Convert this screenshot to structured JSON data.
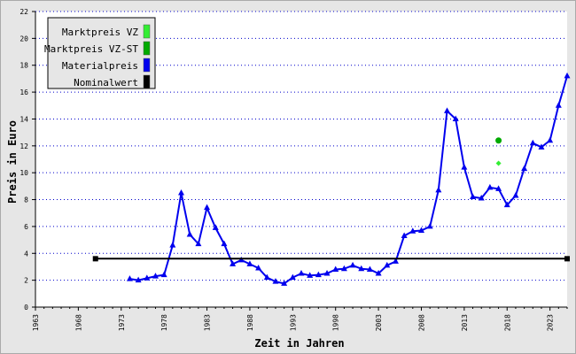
{
  "chart_data": {
    "type": "line",
    "xlabel": "Zeit in Jahren",
    "ylabel": "Preis in Euro",
    "xlim": [
      1963,
      2025
    ],
    "ylim": [
      0,
      22
    ],
    "x_ticks": [
      1963,
      1968,
      1973,
      1978,
      1983,
      1988,
      1993,
      1998,
      2003,
      2008,
      2013,
      2018,
      2023
    ],
    "y_ticks": [
      0,
      2,
      4,
      6,
      8,
      10,
      12,
      14,
      16,
      18,
      20,
      22
    ],
    "grid": "horizontal dotted",
    "legend_position": "top-left",
    "legend": [
      {
        "label": "Marktpreis VZ",
        "color": "#33ee33"
      },
      {
        "label": "Marktpreis VZ-ST",
        "color": "#00aa00"
      },
      {
        "label": "Materialpreis",
        "color": "#0000ee"
      },
      {
        "label": "Nominalwert",
        "color": "#000000"
      }
    ],
    "series": [
      {
        "name": "Materialpreis",
        "color": "#0000ee",
        "marker": "triangle",
        "x": [
          1974,
          1975,
          1976,
          1977,
          1978,
          1979,
          1980,
          1981,
          1982,
          1983,
          1984,
          1985,
          1986,
          1987,
          1988,
          1989,
          1990,
          1991,
          1992,
          1993,
          1994,
          1995,
          1996,
          1997,
          1998,
          1999,
          2000,
          2001,
          2002,
          2003,
          2004,
          2005,
          2006,
          2007,
          2008,
          2009,
          2010,
          2011,
          2012,
          2013,
          2014,
          2015,
          2016,
          2017,
          2018,
          2019,
          2020,
          2021,
          2022,
          2023,
          2024,
          2025
        ],
        "y": [
          2.1,
          2.0,
          2.15,
          2.3,
          2.4,
          4.6,
          8.5,
          5.4,
          4.7,
          7.4,
          5.9,
          4.7,
          3.2,
          3.5,
          3.2,
          2.9,
          2.2,
          1.9,
          1.75,
          2.2,
          2.5,
          2.35,
          2.4,
          2.5,
          2.8,
          2.85,
          3.1,
          2.85,
          2.8,
          2.5,
          3.1,
          3.4,
          5.3,
          5.65,
          5.7,
          6.0,
          8.7,
          14.6,
          14.0,
          10.4,
          8.2,
          8.1,
          8.9,
          8.8,
          7.6,
          8.3,
          10.3,
          12.2,
          11.9,
          12.4,
          15.0,
          17.2
        ]
      },
      {
        "name": "Nominalwert",
        "color": "#000000",
        "marker": "square",
        "x": [
          1970,
          2025
        ],
        "y": [
          3.6,
          3.6
        ]
      },
      {
        "name": "Marktpreis VZ-ST",
        "color": "#00aa00",
        "marker": "circle",
        "x": [
          2017
        ],
        "y": [
          12.4
        ]
      },
      {
        "name": "Marktpreis VZ",
        "color": "#33ee33",
        "marker": "diamond",
        "x": [
          2017
        ],
        "y": [
          10.7
        ]
      }
    ]
  }
}
